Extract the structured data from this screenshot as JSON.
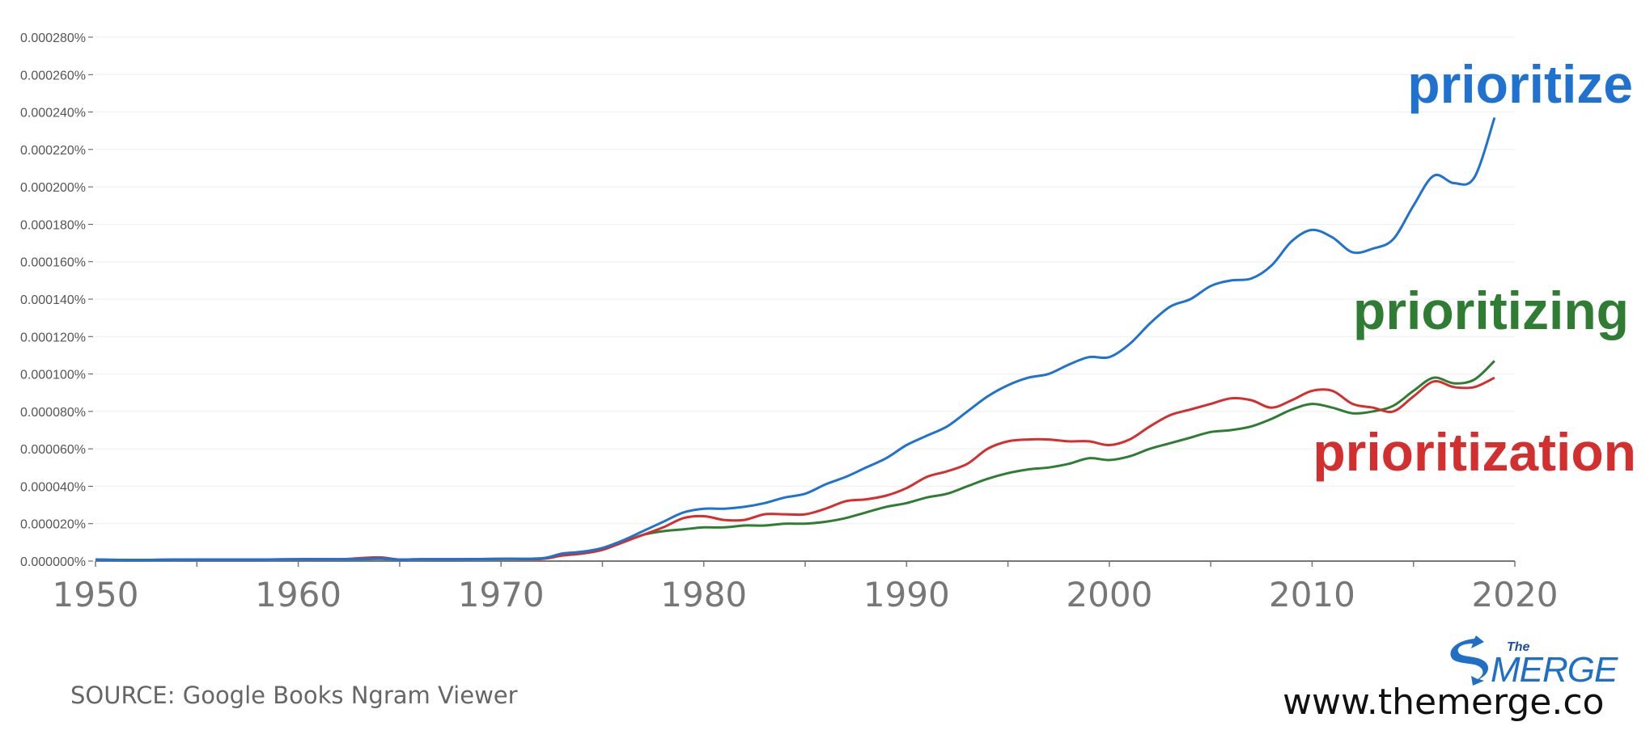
{
  "chart_data": {
    "type": "line",
    "xlim": [
      1950,
      2020
    ],
    "ylim": [
      0,
      0.00028
    ],
    "x_ticks": [
      "1950",
      "1960",
      "1970",
      "1980",
      "1990",
      "2000",
      "2010",
      "2020"
    ],
    "y_ticks": [
      "0.000000%",
      "0.000020%",
      "0.000040%",
      "0.000060%",
      "0.000080%",
      "0.000100%",
      "0.000120%",
      "0.000140%",
      "0.000160%",
      "0.000180%",
      "0.000200%",
      "0.000220%",
      "0.000240%",
      "0.000260%",
      "0.000280%"
    ],
    "grid": true,
    "x": [
      1950,
      1952,
      1954,
      1956,
      1958,
      1960,
      1962,
      1963,
      1964,
      1965,
      1966,
      1968,
      1970,
      1972,
      1973,
      1974,
      1975,
      1976,
      1977,
      1978,
      1979,
      1980,
      1981,
      1982,
      1983,
      1984,
      1985,
      1986,
      1987,
      1988,
      1989,
      1990,
      1991,
      1992,
      1993,
      1994,
      1995,
      1996,
      1997,
      1998,
      1999,
      2000,
      2001,
      2002,
      2003,
      2004,
      2005,
      2006,
      2007,
      2008,
      2009,
      2010,
      2011,
      2012,
      2013,
      2014,
      2015,
      2016,
      2017,
      2018,
      2019
    ],
    "series": [
      {
        "name": "prioritize",
        "color": "#1f72cf",
        "values": [
          8e-07,
          6e-07,
          8e-07,
          8e-07,
          8e-07,
          1e-06,
          1e-06,
          1e-06,
          1.4e-06,
          8e-07,
          1e-06,
          1e-06,
          1.2e-06,
          1.5e-06,
          4e-06,
          5e-06,
          7e-06,
          1.1e-05,
          1.6e-05,
          2.1e-05,
          2.6e-05,
          2.8e-05,
          2.8e-05,
          2.9e-05,
          3.1e-05,
          3.4e-05,
          3.6e-05,
          4.1e-05,
          4.5e-05,
          5e-05,
          5.5e-05,
          6.2e-05,
          6.7e-05,
          7.2e-05,
          8e-05,
          8.8e-05,
          9.4e-05,
          9.8e-05,
          0.0001,
          0.000105,
          0.000109,
          0.000109,
          0.000116,
          0.000127,
          0.000136,
          0.00014,
          0.000147,
          0.00015,
          0.000151,
          0.000158,
          0.000171,
          0.000177,
          0.000173,
          0.000165,
          0.000167,
          0.000172,
          0.00019,
          0.000206,
          0.000202,
          0.000205,
          0.000237
        ]
      },
      {
        "name": "prioritizing",
        "color": "#2e7d32",
        "values": [
          8e-07,
          6e-07,
          8e-07,
          8e-07,
          8e-07,
          1e-06,
          1e-06,
          1e-06,
          1.2e-06,
          8e-07,
          1e-06,
          1e-06,
          1.2e-06,
          1.2e-06,
          3e-06,
          4e-06,
          6e-06,
          1e-05,
          1.4e-05,
          1.6e-05,
          1.7e-05,
          1.8e-05,
          1.8e-05,
          1.9e-05,
          1.9e-05,
          2e-05,
          2e-05,
          2.1e-05,
          2.3e-05,
          2.6e-05,
          2.9e-05,
          3.1e-05,
          3.4e-05,
          3.6e-05,
          4e-05,
          4.4e-05,
          4.7e-05,
          4.9e-05,
          5e-05,
          5.2e-05,
          5.5e-05,
          5.4e-05,
          5.6e-05,
          6e-05,
          6.3e-05,
          6.6e-05,
          6.9e-05,
          7e-05,
          7.2e-05,
          7.6e-05,
          8.1e-05,
          8.4e-05,
          8.2e-05,
          7.9e-05,
          8e-05,
          8.3e-05,
          9.1e-05,
          9.8e-05,
          9.5e-05,
          9.7e-05,
          0.000107
        ]
      },
      {
        "name": "prioritization",
        "color": "#d32f2f",
        "values": [
          8e-07,
          6e-07,
          8e-07,
          8e-07,
          8e-07,
          1e-06,
          1e-06,
          1.5e-06,
          2e-06,
          8e-07,
          1e-06,
          1e-06,
          1.2e-06,
          1.2e-06,
          3e-06,
          4e-06,
          6e-06,
          1e-05,
          1.4e-05,
          1.8e-05,
          2.3e-05,
          2.4e-05,
          2.2e-05,
          2.2e-05,
          2.5e-05,
          2.5e-05,
          2.5e-05,
          2.8e-05,
          3.2e-05,
          3.3e-05,
          3.5e-05,
          3.9e-05,
          4.5e-05,
          4.8e-05,
          5.2e-05,
          6e-05,
          6.4e-05,
          6.5e-05,
          6.5e-05,
          6.4e-05,
          6.4e-05,
          6.2e-05,
          6.5e-05,
          7.2e-05,
          7.8e-05,
          8.1e-05,
          8.4e-05,
          8.7e-05,
          8.6e-05,
          8.2e-05,
          8.6e-05,
          9.1e-05,
          9.1e-05,
          8.4e-05,
          8.2e-05,
          8e-05,
          8.8e-05,
          9.6e-05,
          9.3e-05,
          9.3e-05,
          9.8e-05
        ]
      }
    ]
  },
  "source_text": "SOURCE: Google Books Ngram Viewer",
  "logo": {
    "line1": "The",
    "line2": "MERGE",
    "color": "#1f6fc6"
  },
  "website": "www.themerge.co"
}
